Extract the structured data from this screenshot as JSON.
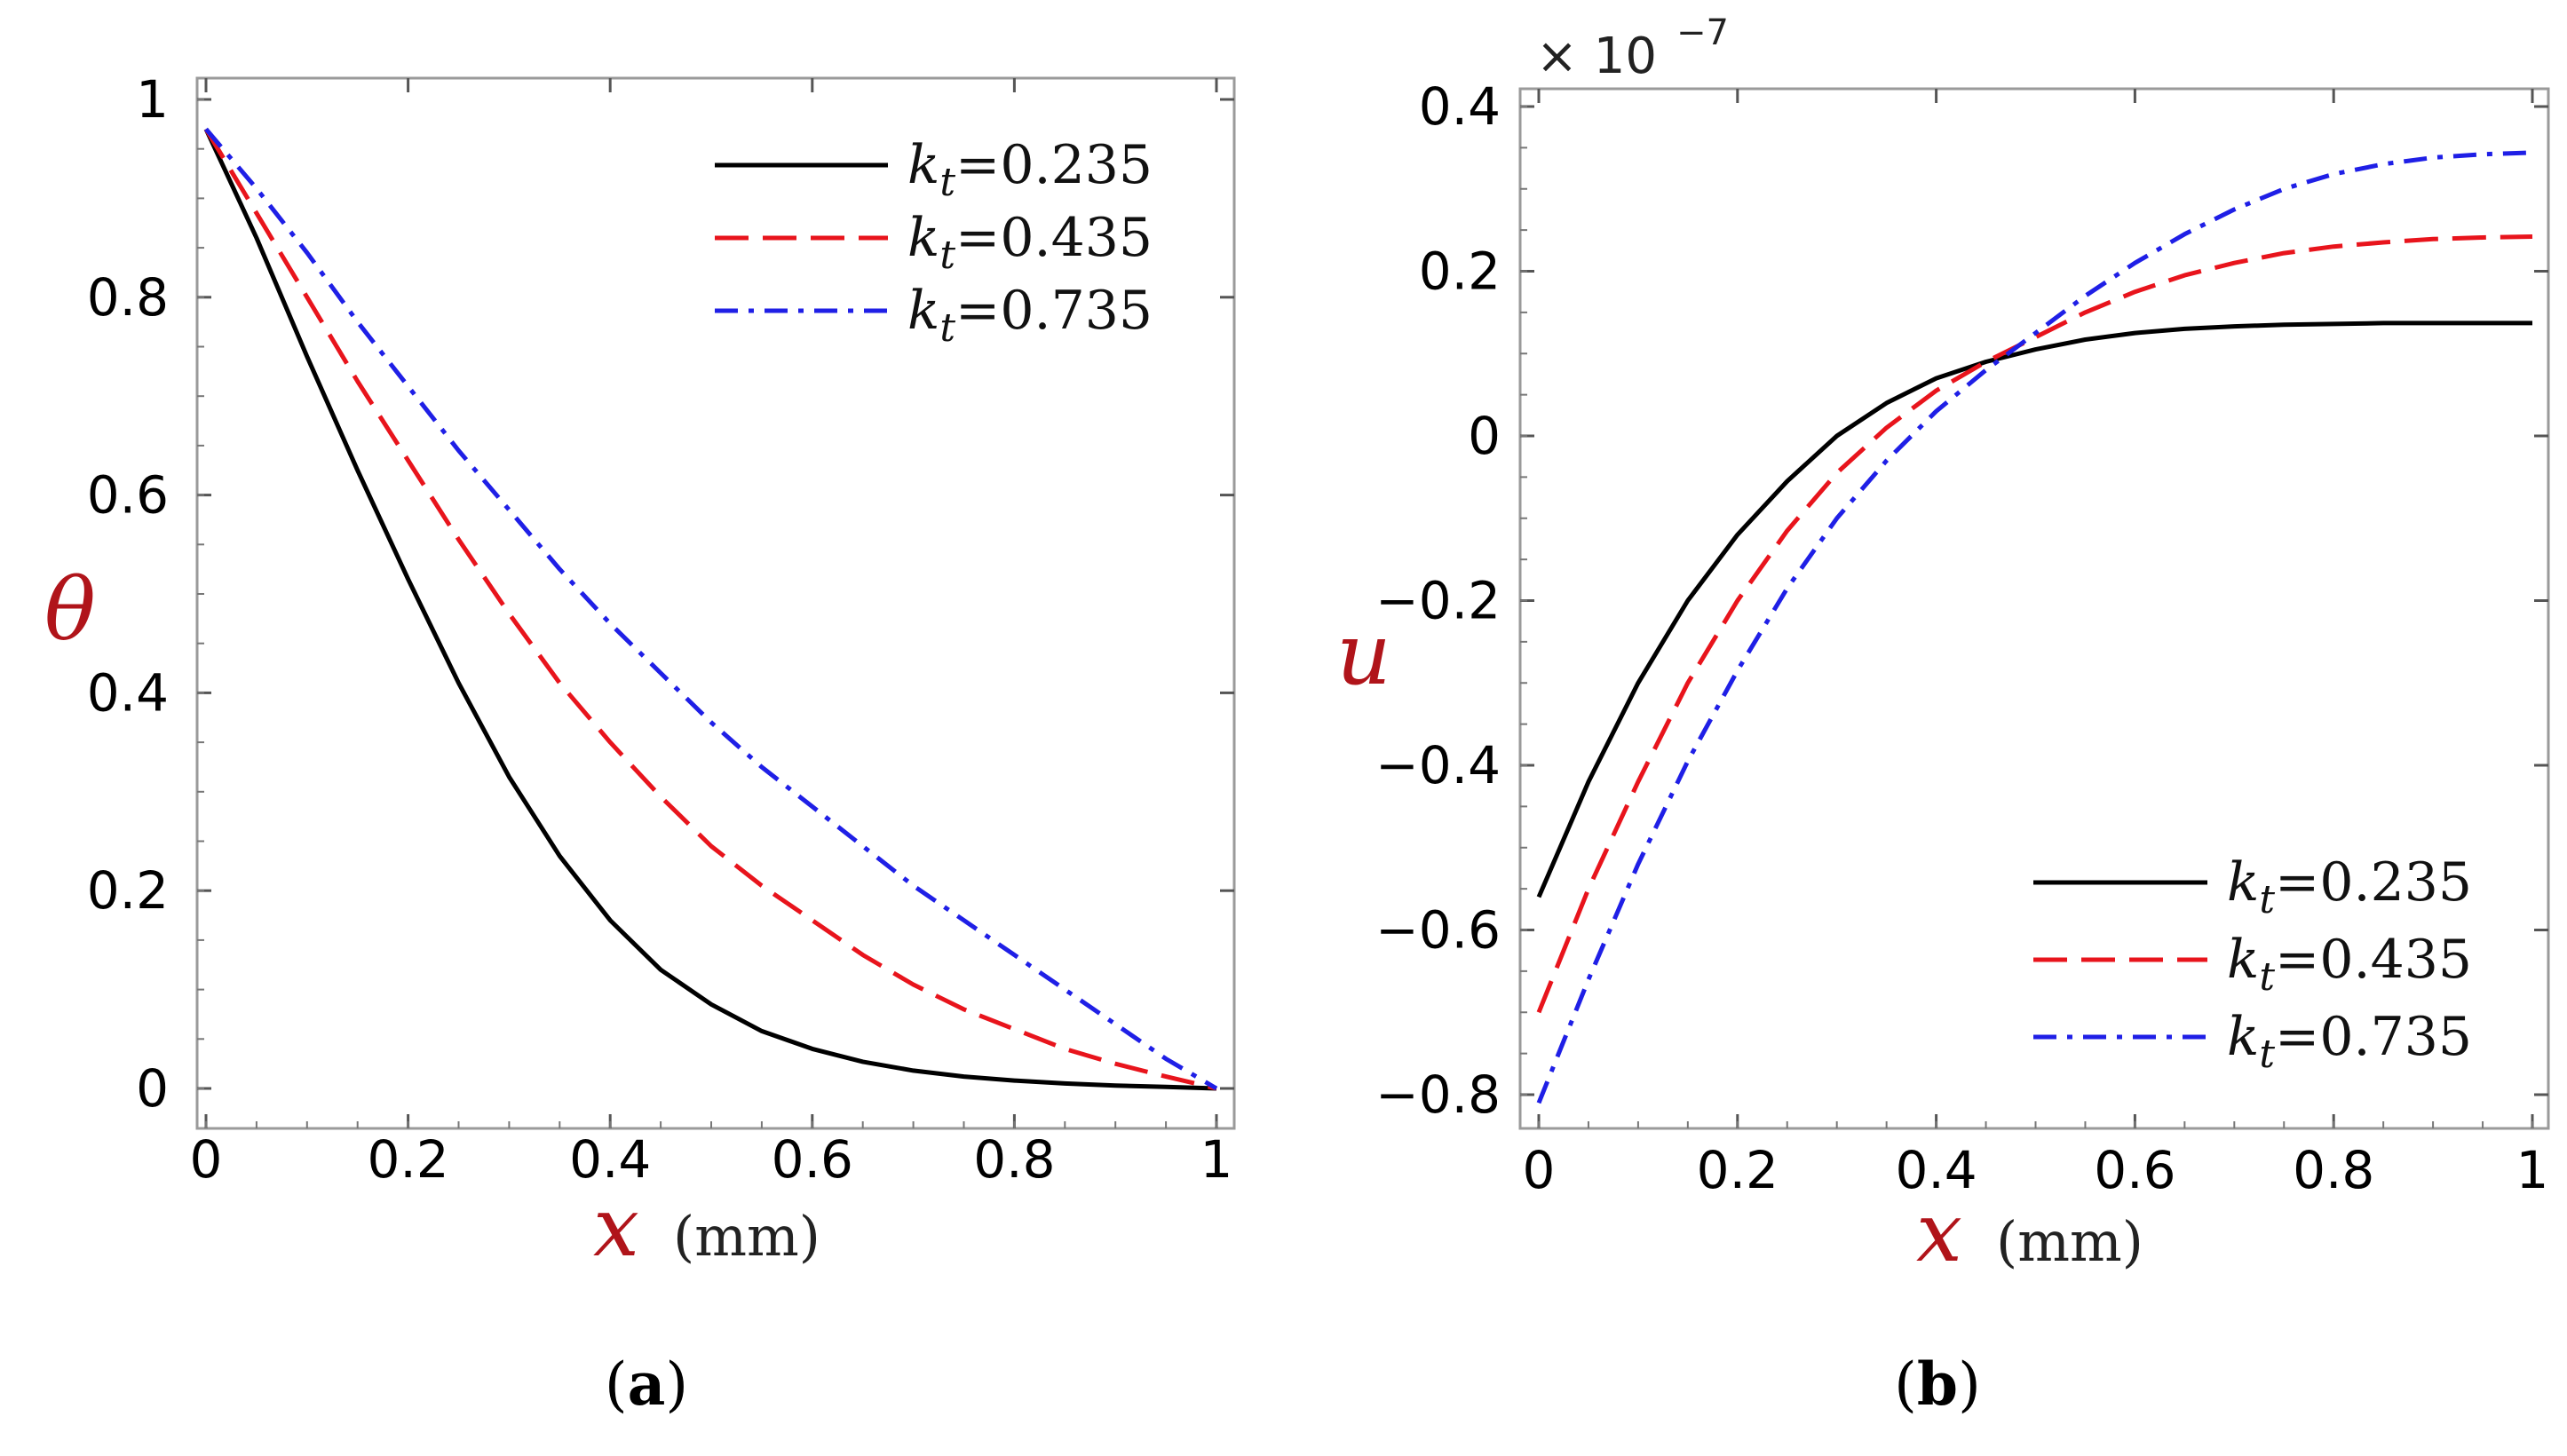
{
  "chart_data": [
    {
      "type": "line",
      "panel": "a",
      "panel_label": "a",
      "ylabel": "θ",
      "xlabel": "x",
      "xlabel_unit": "(mm)",
      "xlim": [
        0,
        1
      ],
      "ylim": [
        0,
        1
      ],
      "xticks": [
        0,
        0.2,
        0.4,
        0.6,
        0.8,
        1
      ],
      "xtick_labels": [
        "0",
        "0.2",
        "0.4",
        "0.6",
        "0.8",
        "1"
      ],
      "yticks": [
        0,
        0.2,
        0.4,
        0.6,
        0.8,
        1
      ],
      "ytick_labels": [
        "0",
        "0.2",
        "0.4",
        "0.6",
        "0.8",
        "1"
      ],
      "legend_position": "top-right",
      "x": [
        0,
        0.05,
        0.1,
        0.15,
        0.2,
        0.25,
        0.3,
        0.35,
        0.4,
        0.45,
        0.5,
        0.55,
        0.6,
        0.65,
        0.7,
        0.75,
        0.8,
        0.85,
        0.9,
        0.95,
        1.0
      ],
      "series": [
        {
          "name": "k_t=0.235",
          "k": "k",
          "sub": "t",
          "value_label": "=0.235",
          "color": "#000000",
          "dash": "solid",
          "values": [
            0.97,
            0.86,
            0.74,
            0.625,
            0.515,
            0.41,
            0.315,
            0.235,
            0.17,
            0.12,
            0.085,
            0.058,
            0.04,
            0.027,
            0.018,
            0.012,
            0.008,
            0.005,
            0.003,
            0.0015,
            0.0
          ]
        },
        {
          "name": "k_t=0.435",
          "k": "k",
          "sub": "t",
          "value_label": "=0.435",
          "color": "#e8141c",
          "dash": "dashed",
          "values": [
            0.97,
            0.885,
            0.8,
            0.715,
            0.635,
            0.555,
            0.48,
            0.41,
            0.35,
            0.295,
            0.245,
            0.205,
            0.17,
            0.135,
            0.105,
            0.08,
            0.06,
            0.04,
            0.025,
            0.012,
            0.0
          ]
        },
        {
          "name": "k_t=0.735",
          "k": "k",
          "sub": "t",
          "value_label": "=0.735",
          "color": "#1f1fe6",
          "dash": "dashdot",
          "values": [
            0.97,
            0.91,
            0.845,
            0.775,
            0.71,
            0.645,
            0.585,
            0.525,
            0.47,
            0.42,
            0.37,
            0.325,
            0.285,
            0.245,
            0.205,
            0.17,
            0.135,
            0.1,
            0.065,
            0.03,
            0.0
          ]
        }
      ]
    },
    {
      "type": "line",
      "panel": "b",
      "panel_label": "b",
      "ylabel": "u",
      "xlabel": "x",
      "xlabel_unit": "(mm)",
      "xlim": [
        0,
        1
      ],
      "ylim": [
        -0.85,
        0.42
      ],
      "y_multiplier": "× 10",
      "y_multiplier_exp": "−7",
      "xticks": [
        0,
        0.2,
        0.4,
        0.6,
        0.8,
        1
      ],
      "xtick_labels": [
        "0",
        "0.2",
        "0.4",
        "0.6",
        "0.8",
        "1"
      ],
      "yticks": [
        -0.8,
        -0.6,
        -0.4,
        -0.2,
        0,
        0.2,
        0.4
      ],
      "ytick_labels": [
        "−0.8",
        "−0.6",
        "−0.4",
        "−0.2",
        "0",
        "0.2",
        "0.4"
      ],
      "legend_position": "bottom-right",
      "x": [
        0,
        0.05,
        0.1,
        0.15,
        0.2,
        0.25,
        0.3,
        0.35,
        0.4,
        0.45,
        0.5,
        0.55,
        0.6,
        0.65,
        0.7,
        0.75,
        0.8,
        0.85,
        0.9,
        0.95,
        1.0
      ],
      "series": [
        {
          "name": "k_t=0.235",
          "k": "k",
          "sub": "t",
          "value_label": "=0.235",
          "color": "#000000",
          "dash": "solid",
          "values": [
            -0.56,
            -0.42,
            -0.3,
            -0.2,
            -0.12,
            -0.055,
            0.0,
            0.04,
            0.07,
            0.09,
            0.105,
            0.117,
            0.125,
            0.13,
            0.133,
            0.135,
            0.136,
            0.137,
            0.137,
            0.137,
            0.137
          ]
        },
        {
          "name": "k_t=0.435",
          "k": "k",
          "sub": "t",
          "value_label": "=0.435",
          "color": "#e8141c",
          "dash": "dashed",
          "values": [
            -0.7,
            -0.55,
            -0.42,
            -0.3,
            -0.2,
            -0.115,
            -0.045,
            0.01,
            0.055,
            0.09,
            0.12,
            0.15,
            0.175,
            0.195,
            0.21,
            0.222,
            0.23,
            0.235,
            0.239,
            0.241,
            0.242
          ]
        },
        {
          "name": "k_t=0.735",
          "k": "k",
          "sub": "t",
          "value_label": "=0.735",
          "color": "#1f1fe6",
          "dash": "dashdot",
          "values": [
            -0.81,
            -0.66,
            -0.52,
            -0.395,
            -0.285,
            -0.185,
            -0.1,
            -0.03,
            0.03,
            0.08,
            0.125,
            0.17,
            0.21,
            0.245,
            0.275,
            0.3,
            0.318,
            0.33,
            0.338,
            0.342,
            0.344
          ]
        }
      ]
    }
  ]
}
